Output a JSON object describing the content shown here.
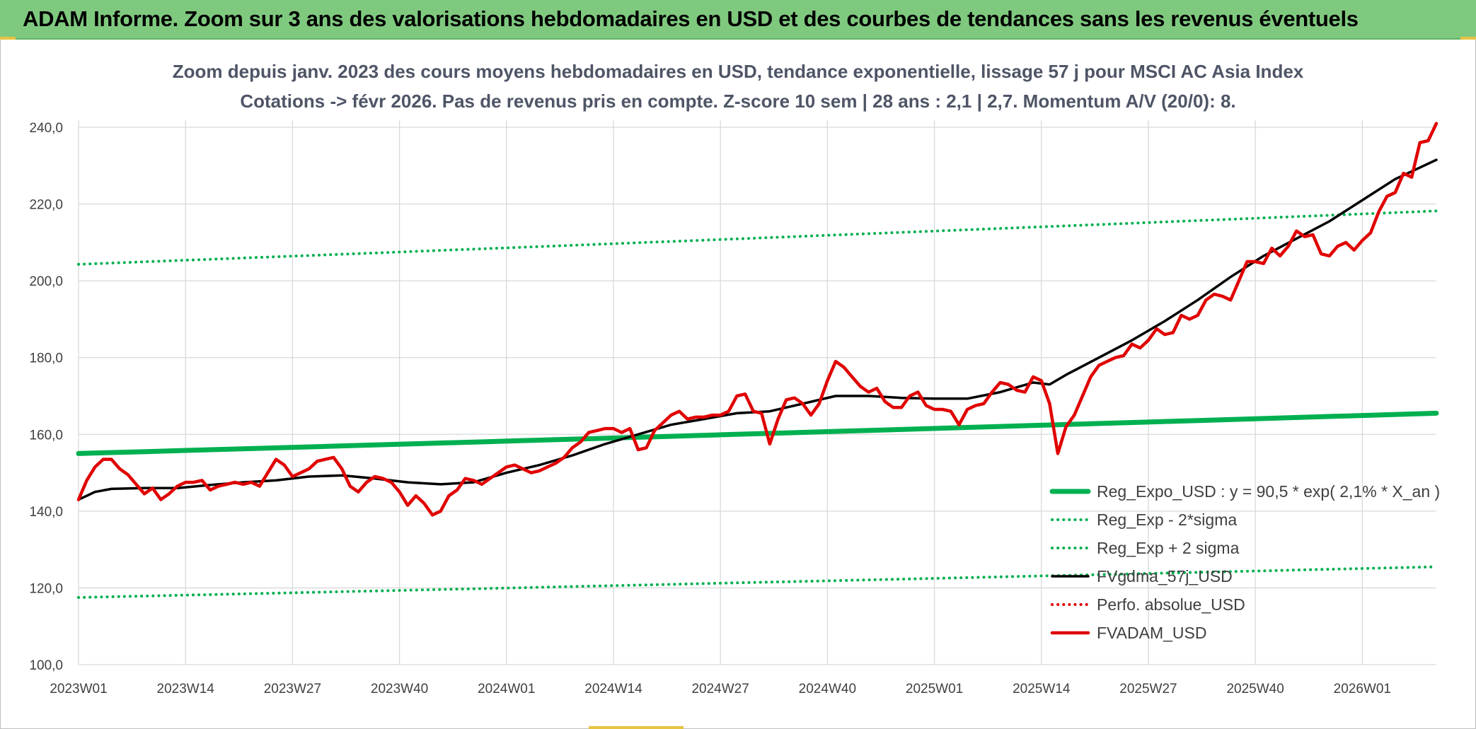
{
  "header": {
    "title": "ADAM Informe. Zoom sur 3 ans des valorisations hebdomadaires en USD et des courbes de tendances sans les revenus éventuels"
  },
  "colors": {
    "banner": "#7fc97f",
    "trend": "#00b050",
    "price": "#e00000",
    "smooth": "#000000",
    "perf": "#e00000",
    "grid": "#d9d9d9"
  },
  "chart_data": {
    "type": "line",
    "subtitle_line1": "Zoom depuis janv. 2023 des cours moyens hebdomadaires en USD, tendance exponentielle, lissage 57 j pour MSCI AC Asia Index",
    "subtitle_line2": "Cotations -> févr 2026. Pas de revenus pris en compte. Z-score 10 sem | 28 ans : 2,1 | 2,7. Momentum A/V (20/0): 8.",
    "x_tick_labels": [
      "2023W01",
      "2023W14",
      "2023W27",
      "2023W40",
      "2024W01",
      "2024W14",
      "2024W27",
      "2024W40",
      "2025W01",
      "2025W14",
      "2025W27",
      "2025W40",
      "2026W01"
    ],
    "y_tick_labels": [
      "100,0",
      "120,0",
      "140,0",
      "160,0",
      "180,0",
      "200,0",
      "220,0",
      "240,0"
    ],
    "x_range_weeks": [
      0,
      165
    ],
    "ylim": [
      100,
      240
    ],
    "legend_position": "bottom-right",
    "series": [
      {
        "name": "Reg_Expo_USD : y = 90,5 * exp( 2,1% *  X_an )",
        "style": "solid-thick",
        "color": "#00b050",
        "x": [
          0,
          165
        ],
        "values": [
          155.0,
          165.5
        ]
      },
      {
        "name": "Reg_Exp - 2*sigma",
        "style": "dotted",
        "color": "#00b050",
        "x": [
          0,
          165
        ],
        "values": [
          117.5,
          125.5
        ]
      },
      {
        "name": "Reg_Exp + 2 sigma",
        "style": "dotted",
        "color": "#00b050",
        "x": [
          0,
          165
        ],
        "values": [
          204.3,
          218.2
        ]
      },
      {
        "name": "FVgdma_57j_USD",
        "style": "solid",
        "color": "#000000",
        "x": [
          0,
          2,
          4,
          8,
          12,
          16,
          20,
          24,
          28,
          32,
          36,
          40,
          44,
          48,
          52,
          56,
          60,
          64,
          68,
          72,
          76,
          80,
          84,
          88,
          92,
          96,
          100,
          104,
          108,
          112,
          116,
          118,
          120,
          124,
          128,
          132,
          136,
          140,
          144,
          148,
          152,
          156,
          160,
          165
        ],
        "values": [
          143.0,
          145.0,
          145.8,
          146.0,
          146.0,
          146.8,
          147.5,
          148.0,
          149.0,
          149.3,
          148.5,
          147.5,
          147.0,
          147.5,
          150.0,
          152.0,
          154.5,
          157.5,
          160.0,
          162.5,
          164.0,
          165.5,
          166.0,
          168.0,
          170.0,
          170.0,
          169.5,
          169.3,
          169.3,
          171.0,
          173.5,
          173.0,
          175.5,
          180.0,
          184.5,
          189.5,
          195.0,
          201.0,
          206.5,
          211.0,
          215.5,
          221.0,
          226.5,
          231.5
        ]
      },
      {
        "name": "Perfo. absolue_USD",
        "style": "dotted",
        "color": "#e00000",
        "x": [],
        "values": []
      },
      {
        "name": "FVADAM_USD",
        "style": "solid-thick",
        "color": "#e00000",
        "x": [
          0,
          1,
          2,
          3,
          4,
          5,
          6,
          7,
          8,
          9,
          10,
          11,
          12,
          13,
          14,
          15,
          16,
          17,
          18,
          19,
          20,
          21,
          22,
          23,
          24,
          25,
          26,
          27,
          28,
          29,
          30,
          31,
          32,
          33,
          34,
          35,
          36,
          37,
          38,
          39,
          40,
          41,
          42,
          43,
          44,
          45,
          46,
          47,
          48,
          49,
          50,
          51,
          52,
          53,
          54,
          55,
          56,
          57,
          58,
          59,
          60,
          61,
          62,
          63,
          64,
          65,
          66,
          67,
          68,
          69,
          70,
          71,
          72,
          73,
          74,
          75,
          76,
          77,
          78,
          79,
          80,
          81,
          82,
          83,
          84,
          85,
          86,
          87,
          88,
          89,
          90,
          91,
          92,
          93,
          94,
          95,
          96,
          97,
          98,
          99,
          100,
          101,
          102,
          103,
          104,
          105,
          106,
          107,
          108,
          109,
          110,
          111,
          112,
          113,
          114,
          115,
          116,
          117,
          118,
          119,
          120,
          121,
          122,
          123,
          124,
          125,
          126,
          127,
          128,
          129,
          130,
          131,
          132,
          133,
          134,
          135,
          136,
          137,
          138,
          139,
          140,
          141,
          142,
          143,
          144,
          145,
          146,
          147,
          148,
          149,
          150,
          151,
          152,
          153,
          154,
          155,
          156,
          157,
          158,
          159,
          160,
          161,
          162,
          163,
          164,
          165
        ],
        "values": [
          143.0,
          148.0,
          151.5,
          153.5,
          153.5,
          151.0,
          149.5,
          147.0,
          144.5,
          146.0,
          143.0,
          144.5,
          146.5,
          147.5,
          147.5,
          148.0,
          145.5,
          146.5,
          147.0,
          147.5,
          147.0,
          147.5,
          146.5,
          150.0,
          153.5,
          152.0,
          149.0,
          150.0,
          151.0,
          153.0,
          153.5,
          154.0,
          151.0,
          146.5,
          145.0,
          147.5,
          149.0,
          148.5,
          147.5,
          145.0,
          141.5,
          144.0,
          142.0,
          139.0,
          140.0,
          144.0,
          145.5,
          148.5,
          148.0,
          147.0,
          148.5,
          150.0,
          151.5,
          152.0,
          151.0,
          150.0,
          150.5,
          151.5,
          152.5,
          154.0,
          156.5,
          158.0,
          160.5,
          161.0,
          161.5,
          161.5,
          160.5,
          161.5,
          156.0,
          156.5,
          161.0,
          163.0,
          165.0,
          166.0,
          164.0,
          164.5,
          164.5,
          165.0,
          165.0,
          166.0,
          170.0,
          170.5,
          166.0,
          165.5,
          157.5,
          164.0,
          169.0,
          169.5,
          168.0,
          165.0,
          168.0,
          174.0,
          179.0,
          177.5,
          175.0,
          172.5,
          171.0,
          172.0,
          168.5,
          167.0,
          167.0,
          170.0,
          171.0,
          167.5,
          166.5,
          166.5,
          166.0,
          162.5,
          166.5,
          167.5,
          168.0,
          171.0,
          173.5,
          173.0,
          171.5,
          171.0,
          175.0,
          174.0,
          168.0,
          155.0,
          162.0,
          165.0,
          170.0,
          175.0,
          178.0,
          179.0,
          180.0,
          180.5,
          183.5,
          182.5,
          184.5,
          187.5,
          186.0,
          186.5,
          191.0,
          190.0,
          191.0,
          195.0,
          196.5,
          196.0,
          195.0,
          200.0,
          205.0,
          205.0,
          204.5,
          208.5,
          206.5,
          209.0,
          213.0,
          211.5,
          212.0,
          207.0,
          206.5,
          209.0,
          210.0,
          208.0,
          210.5,
          212.5,
          218.0,
          222.0,
          223.0,
          228.0,
          227.0,
          236.0,
          236.5,
          241.0
        ]
      }
    ]
  }
}
